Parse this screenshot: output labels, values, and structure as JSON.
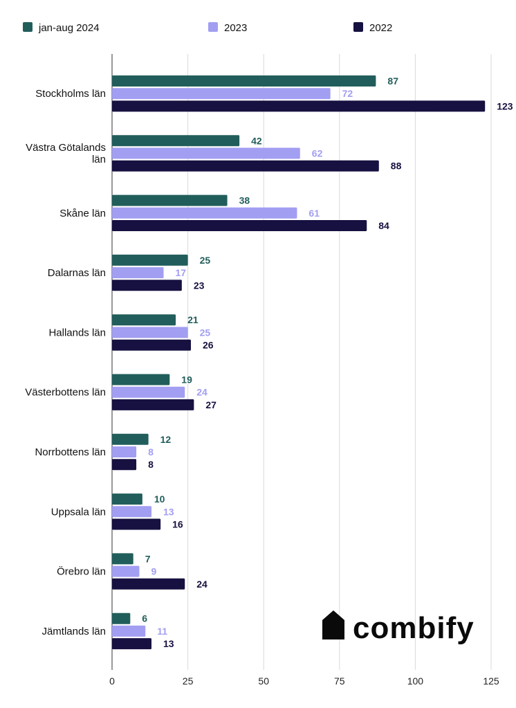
{
  "chart_data": {
    "type": "bar",
    "orientation": "horizontal",
    "categories": [
      [
        "Stockholms län"
      ],
      [
        "Västra Götalands",
        "län"
      ],
      [
        "Skåne län"
      ],
      [
        "Dalarnas län"
      ],
      [
        "Hallands län"
      ],
      [
        "Västerbottens län"
      ],
      [
        "Norrbottens län"
      ],
      [
        "Uppsala län"
      ],
      [
        "Örebro län"
      ],
      [
        "Jämtlands län"
      ]
    ],
    "series": [
      {
        "name": "jan-aug 2024",
        "color": "#215e5b",
        "values": [
          87,
          42,
          38,
          25,
          21,
          19,
          12,
          10,
          7,
          6
        ]
      },
      {
        "name": "2023",
        "color": "#a29ef2",
        "values": [
          72,
          62,
          61,
          17,
          25,
          24,
          8,
          13,
          9,
          11
        ]
      },
      {
        "name": "2022",
        "color": "#161140",
        "values": [
          123,
          88,
          84,
          23,
          26,
          27,
          8,
          16,
          24,
          13
        ]
      }
    ],
    "xlim": [
      0,
      125
    ],
    "xticks": [
      0,
      25,
      50,
      75,
      100,
      125
    ],
    "grid": true,
    "legend_position": "top"
  },
  "brand": {
    "logo_text": "combify",
    "logo_icon": "house-icon"
  }
}
